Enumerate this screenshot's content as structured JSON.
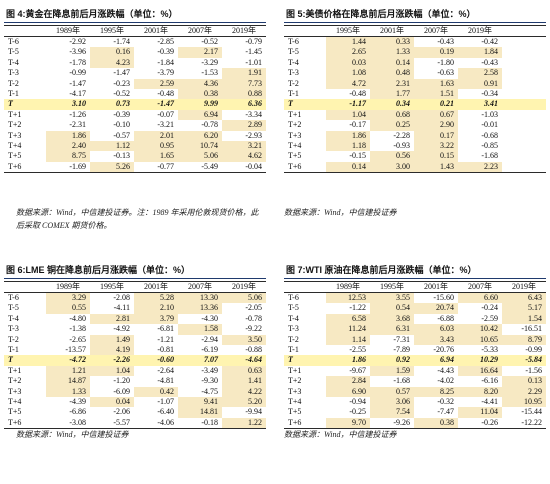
{
  "panels": [
    {
      "title": "图 4:黄金在降息前后月涨跌幅（单位：%）",
      "note": "数据来源：Wind，中信建投证券。注：1989 年采用伦敦现货价格，此后采取 COMEX 期货价格。",
      "years": [
        "1989年",
        "1995年",
        "2001年",
        "2007年",
        "2019年"
      ],
      "rows": [
        {
          "label": "T-6",
          "values": [
            "-2.92",
            "-1.74",
            "-2.85",
            "-0.52",
            "-0.79"
          ]
        },
        {
          "label": "T-5",
          "values": [
            "-3.96",
            "0.16",
            "-0.39",
            "2.17",
            "-1.45"
          ]
        },
        {
          "label": "T-4",
          "values": [
            "-1.78",
            "4.23",
            "-1.84",
            "-3.29",
            "-1.01"
          ]
        },
        {
          "label": "T-3",
          "values": [
            "-0.99",
            "-1.47",
            "-3.79",
            "-1.53",
            "1.91"
          ]
        },
        {
          "label": "T-2",
          "values": [
            "-1.47",
            "-0.23",
            "2.59",
            "4.36",
            "7.73"
          ]
        },
        {
          "label": "T-1",
          "values": [
            "-4.17",
            "-0.52",
            "-0.48",
            "0.38",
            "0.88"
          ]
        },
        {
          "label": "T",
          "values": [
            "3.10",
            "0.73",
            "-1.47",
            "9.99",
            "6.36"
          ]
        },
        {
          "label": "T+1",
          "values": [
            "-1.26",
            "-0.39",
            "-0.07",
            "6.94",
            "-3.34"
          ]
        },
        {
          "label": "T+2",
          "values": [
            "-2.31",
            "-0.10",
            "-3.21",
            "-0.78",
            "2.89"
          ]
        },
        {
          "label": "T+3",
          "values": [
            "1.86",
            "-0.57",
            "2.01",
            "6.20",
            "-2.93"
          ]
        },
        {
          "label": "T+4",
          "values": [
            "2.40",
            "1.12",
            "0.95",
            "10.74",
            "3.21"
          ]
        },
        {
          "label": "T+5",
          "values": [
            "8.75",
            "-0.13",
            "1.65",
            "5.06",
            "4.62"
          ]
        },
        {
          "label": "T+6",
          "values": [
            "-1.69",
            "5.26",
            "-0.77",
            "-5.49",
            "-0.04"
          ]
        }
      ]
    },
    {
      "title": "图 5:美债价格在降息前后月涨跌幅（单位：%）",
      "note": "数据来源：Wind，中信建投证券",
      "years": [
        "1995年",
        "2001年",
        "2007年",
        "2019年"
      ],
      "rows": [
        {
          "label": "T-6",
          "values": [
            "1.44",
            "0.33",
            "-0.43",
            "-0.42"
          ]
        },
        {
          "label": "T-5",
          "values": [
            "2.65",
            "1.33",
            "0.19",
            "1.84"
          ]
        },
        {
          "label": "T-4",
          "values": [
            "0.03",
            "0.14",
            "-1.80",
            "-0.43"
          ]
        },
        {
          "label": "T-3",
          "values": [
            "1.08",
            "0.48",
            "-0.63",
            "2.58"
          ]
        },
        {
          "label": "T-2",
          "values": [
            "4.72",
            "2.31",
            "1.63",
            "0.91"
          ]
        },
        {
          "label": "T-1",
          "values": [
            "-0.48",
            "1.77",
            "1.51",
            "-0.34"
          ]
        },
        {
          "label": "T",
          "values": [
            "-1.17",
            "0.34",
            "0.21",
            "3.41"
          ]
        },
        {
          "label": "T+1",
          "values": [
            "1.04",
            "0.68",
            "0.67",
            "-1.03"
          ]
        },
        {
          "label": "T+2",
          "values": [
            "-0.17",
            "0.25",
            "2.90",
            "-0.01"
          ]
        },
        {
          "label": "T+3",
          "values": [
            "1.86",
            "-2.28",
            "0.17",
            "-0.68"
          ]
        },
        {
          "label": "T+4",
          "values": [
            "1.18",
            "-0.93",
            "3.22",
            "-0.85"
          ]
        },
        {
          "label": "T+5",
          "values": [
            "-0.15",
            "0.56",
            "0.15",
            "-1.68"
          ]
        },
        {
          "label": "T+6",
          "values": [
            "0.14",
            "3.00",
            "1.43",
            "2.23"
          ]
        }
      ]
    },
    {
      "title": "图 6:LME 铜在降息前后月涨跌幅（单位：%）",
      "note": "数据来源：Wind，中信建投证券",
      "years": [
        "1989年",
        "1995年",
        "2001年",
        "2007年",
        "2019年"
      ],
      "rows": [
        {
          "label": "T-6",
          "values": [
            "3.29",
            "-2.08",
            "5.28",
            "13.30",
            "5.06"
          ]
        },
        {
          "label": "T-5",
          "values": [
            "0.55",
            "-4.11",
            "2.10",
            "13.36",
            "-2.05"
          ]
        },
        {
          "label": "T-4",
          "values": [
            "-4.80",
            "2.81",
            "3.79",
            "-4.30",
            "-0.78"
          ]
        },
        {
          "label": "T-3",
          "values": [
            "-1.38",
            "-4.92",
            "-6.81",
            "1.58",
            "-9.22"
          ]
        },
        {
          "label": "T-2",
          "values": [
            "-2.65",
            "1.49",
            "-1.21",
            "-2.94",
            "3.50"
          ]
        },
        {
          "label": "T-1",
          "values": [
            "-13.57",
            "4.19",
            "-0.81",
            "-6.19",
            "-0.88"
          ]
        },
        {
          "label": "T",
          "values": [
            "-4.72",
            "-2.26",
            "-0.60",
            "7.07",
            "-4.64"
          ]
        },
        {
          "label": "T+1",
          "values": [
            "1.21",
            "1.04",
            "-2.64",
            "-3.49",
            "0.63"
          ]
        },
        {
          "label": "T+2",
          "values": [
            "14.87",
            "-1.20",
            "-4.81",
            "-9.30",
            "1.41"
          ]
        },
        {
          "label": "T+3",
          "values": [
            "1.33",
            "-6.09",
            "0.42",
            "-4.75",
            "4.22"
          ]
        },
        {
          "label": "T+4",
          "values": [
            "-4.39",
            "0.04",
            "-1.07",
            "9.41",
            "5.20"
          ]
        },
        {
          "label": "T+5",
          "values": [
            "-6.86",
            "-2.06",
            "-6.40",
            "14.81",
            "-9.94"
          ]
        },
        {
          "label": "T+6",
          "values": [
            "-3.08",
            "-5.57",
            "-4.06",
            "-0.18",
            "1.22"
          ]
        }
      ]
    },
    {
      "title": "图 7:WTI 原油在降息前后月涨跌幅（单位：%）",
      "note": "数据来源：Wind，中信建投证券",
      "years": [
        "1989年",
        "1995年",
        "2001年",
        "2007年",
        "2019年"
      ],
      "rows": [
        {
          "label": "T-6",
          "values": [
            "12.53",
            "3.55",
            "-15.60",
            "6.60",
            "6.43"
          ]
        },
        {
          "label": "T-5",
          "values": [
            "-1.22",
            "0.54",
            "20.74",
            "-0.24",
            "5.17"
          ]
        },
        {
          "label": "T-4",
          "values": [
            "6.58",
            "3.68",
            "-6.88",
            "-2.59",
            "1.54"
          ]
        },
        {
          "label": "T-3",
          "values": [
            "11.24",
            "6.31",
            "6.03",
            "10.42",
            "-16.51"
          ]
        },
        {
          "label": "T-2",
          "values": [
            "1.14",
            "-7.31",
            "3.43",
            "10.65",
            "8.79"
          ]
        },
        {
          "label": "T-1",
          "values": [
            "-2.55",
            "-7.89",
            "-20.76",
            "-5.33",
            "-0.99"
          ]
        },
        {
          "label": "T",
          "values": [
            "1.86",
            "0.92",
            "6.94",
            "10.29",
            "-5.84"
          ]
        },
        {
          "label": "T+1",
          "values": [
            "-9.67",
            "1.59",
            "-4.43",
            "16.64",
            "-1.56"
          ]
        },
        {
          "label": "T+2",
          "values": [
            "2.84",
            "-1.68",
            "-4.02",
            "-6.16",
            "0.13"
          ]
        },
        {
          "label": "T+3",
          "values": [
            "6.90",
            "0.57",
            "8.25",
            "8.20",
            "2.29"
          ]
        },
        {
          "label": "T+4",
          "values": [
            "-0.94",
            "3.06",
            "-0.32",
            "-4.41",
            "10.95"
          ]
        },
        {
          "label": "T+5",
          "values": [
            "-0.25",
            "7.54",
            "-7.47",
            "11.04",
            "-15.44"
          ]
        },
        {
          "label": "T+6",
          "values": [
            "9.70",
            "-9.26",
            "0.38",
            "-0.26",
            "-12.22"
          ]
        }
      ]
    }
  ],
  "shade_color": "#f7e9c3",
  "highlight_color": "#fff4b0"
}
